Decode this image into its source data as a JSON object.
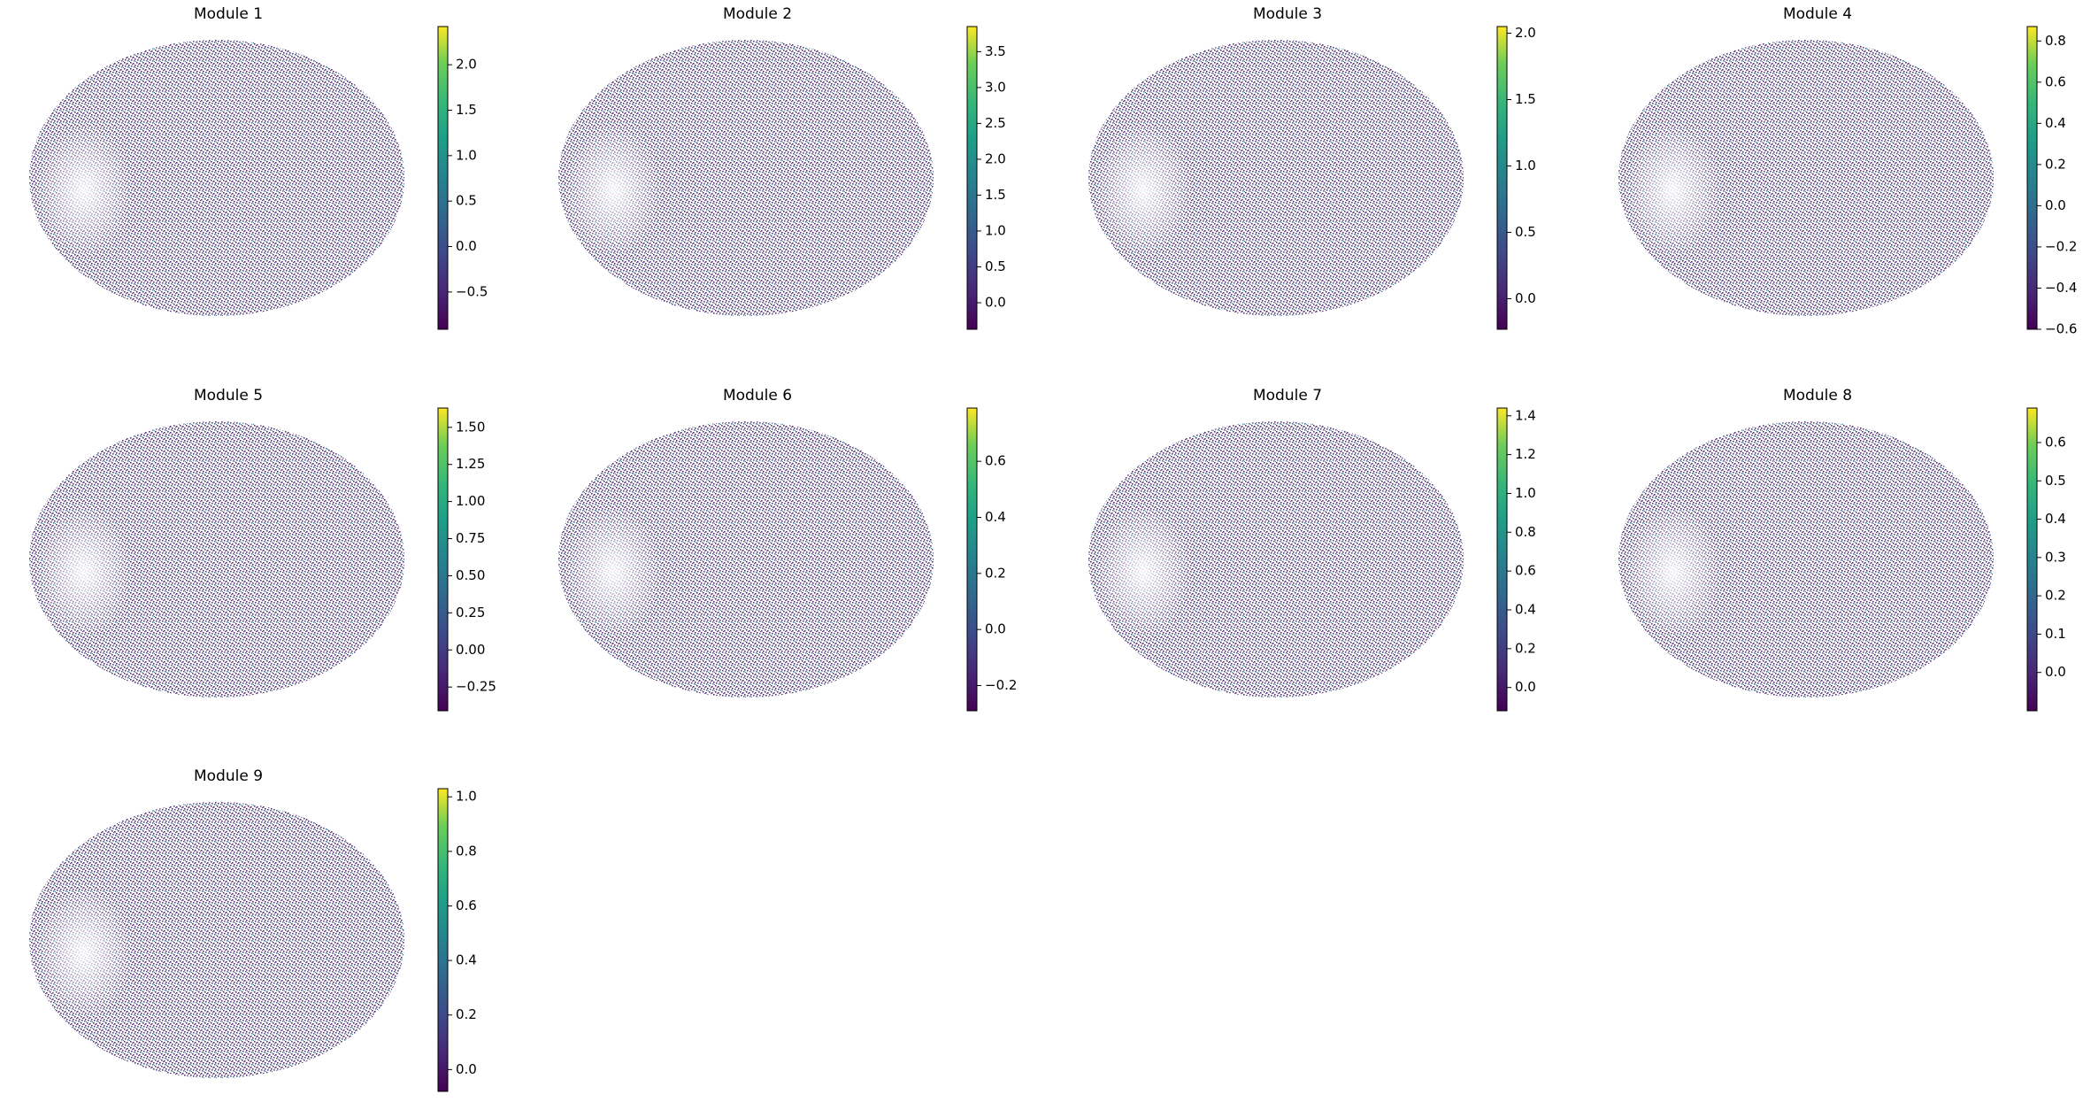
{
  "chart_data": [
    {
      "type": "scatter",
      "title": "Module 1",
      "colormap": "viridis",
      "clim": [
        -0.91,
        2.42
      ],
      "cticks": [
        {
          "value": -0.5,
          "label": "−0.5"
        },
        {
          "value": 0,
          "label": "0.0"
        },
        0.5,
        {
          "value": 1,
          "label": "1.0"
        },
        1.5,
        {
          "value": 2,
          "label": "2.0"
        }
      ]
    },
    {
      "type": "scatter",
      "title": "Module 2",
      "colormap": "viridis",
      "clim": [
        -0.37,
        3.85
      ],
      "cticks": [
        {
          "value": 0,
          "label": "0.0"
        },
        0.5,
        {
          "value": 1,
          "label": "1.0"
        },
        1.5,
        {
          "value": 2,
          "label": "2.0"
        },
        2.5,
        {
          "value": 3,
          "label": "3.0"
        },
        3.5
      ]
    },
    {
      "type": "scatter",
      "title": "Module 3",
      "colormap": "viridis",
      "clim": [
        -0.23,
        2.05
      ],
      "cticks": [
        {
          "value": 0,
          "label": "0.0"
        },
        0.5,
        {
          "value": 1,
          "label": "1.0"
        },
        1.5,
        {
          "value": 2,
          "label": "2.0"
        }
      ]
    },
    {
      "type": "scatter",
      "title": "Module 4",
      "colormap": "viridis",
      "clim": [
        -0.6,
        0.87
      ],
      "cticks": [
        {
          "value": -0.6,
          "label": "−0.6"
        },
        {
          "value": -0.4,
          "label": "−0.4"
        },
        {
          "value": -0.2,
          "label": "−0.2"
        },
        {
          "value": 0,
          "label": "0.0"
        },
        0.2,
        0.4,
        0.6,
        0.8
      ]
    },
    {
      "type": "scatter",
      "title": "Module 5",
      "colormap": "viridis",
      "clim": [
        -0.41,
        1.63
      ],
      "cticks": [
        {
          "value": -0.25,
          "label": "−0.25"
        },
        {
          "value": 0,
          "label": "0.00"
        },
        0.25,
        {
          "value": 0.5,
          "label": "0.50"
        },
        0.75,
        {
          "value": 1,
          "label": "1.00"
        },
        1.25,
        {
          "value": 1.5,
          "label": "1.50"
        }
      ]
    },
    {
      "type": "scatter",
      "title": "Module 6",
      "colormap": "viridis",
      "clim": [
        -0.29,
        0.79
      ],
      "cticks": [
        {
          "value": -0.2,
          "label": "−0.2"
        },
        {
          "value": 0,
          "label": "0.0"
        },
        0.2,
        0.4,
        0.6
      ]
    },
    {
      "type": "scatter",
      "title": "Module 7",
      "colormap": "viridis",
      "clim": [
        -0.12,
        1.44
      ],
      "cticks": [
        {
          "value": 0,
          "label": "0.0"
        },
        0.2,
        0.4,
        0.6,
        0.8,
        {
          "value": 1,
          "label": "1.0"
        },
        1.2,
        1.4
      ]
    },
    {
      "type": "scatter",
      "title": "Module 8",
      "colormap": "viridis",
      "clim": [
        -0.1,
        0.69
      ],
      "cticks": [
        {
          "value": 0,
          "label": "0.0"
        },
        0.1,
        0.2,
        0.3,
        0.4,
        0.5,
        0.6
      ]
    },
    {
      "type": "scatter",
      "title": "Module 9",
      "colormap": "viridis",
      "clim": [
        -0.08,
        1.03
      ],
      "cticks": [
        {
          "value": 0,
          "label": "0.0"
        },
        0.2,
        0.4,
        0.6,
        0.8,
        {
          "value": 1,
          "label": "1.0"
        }
      ]
    }
  ]
}
